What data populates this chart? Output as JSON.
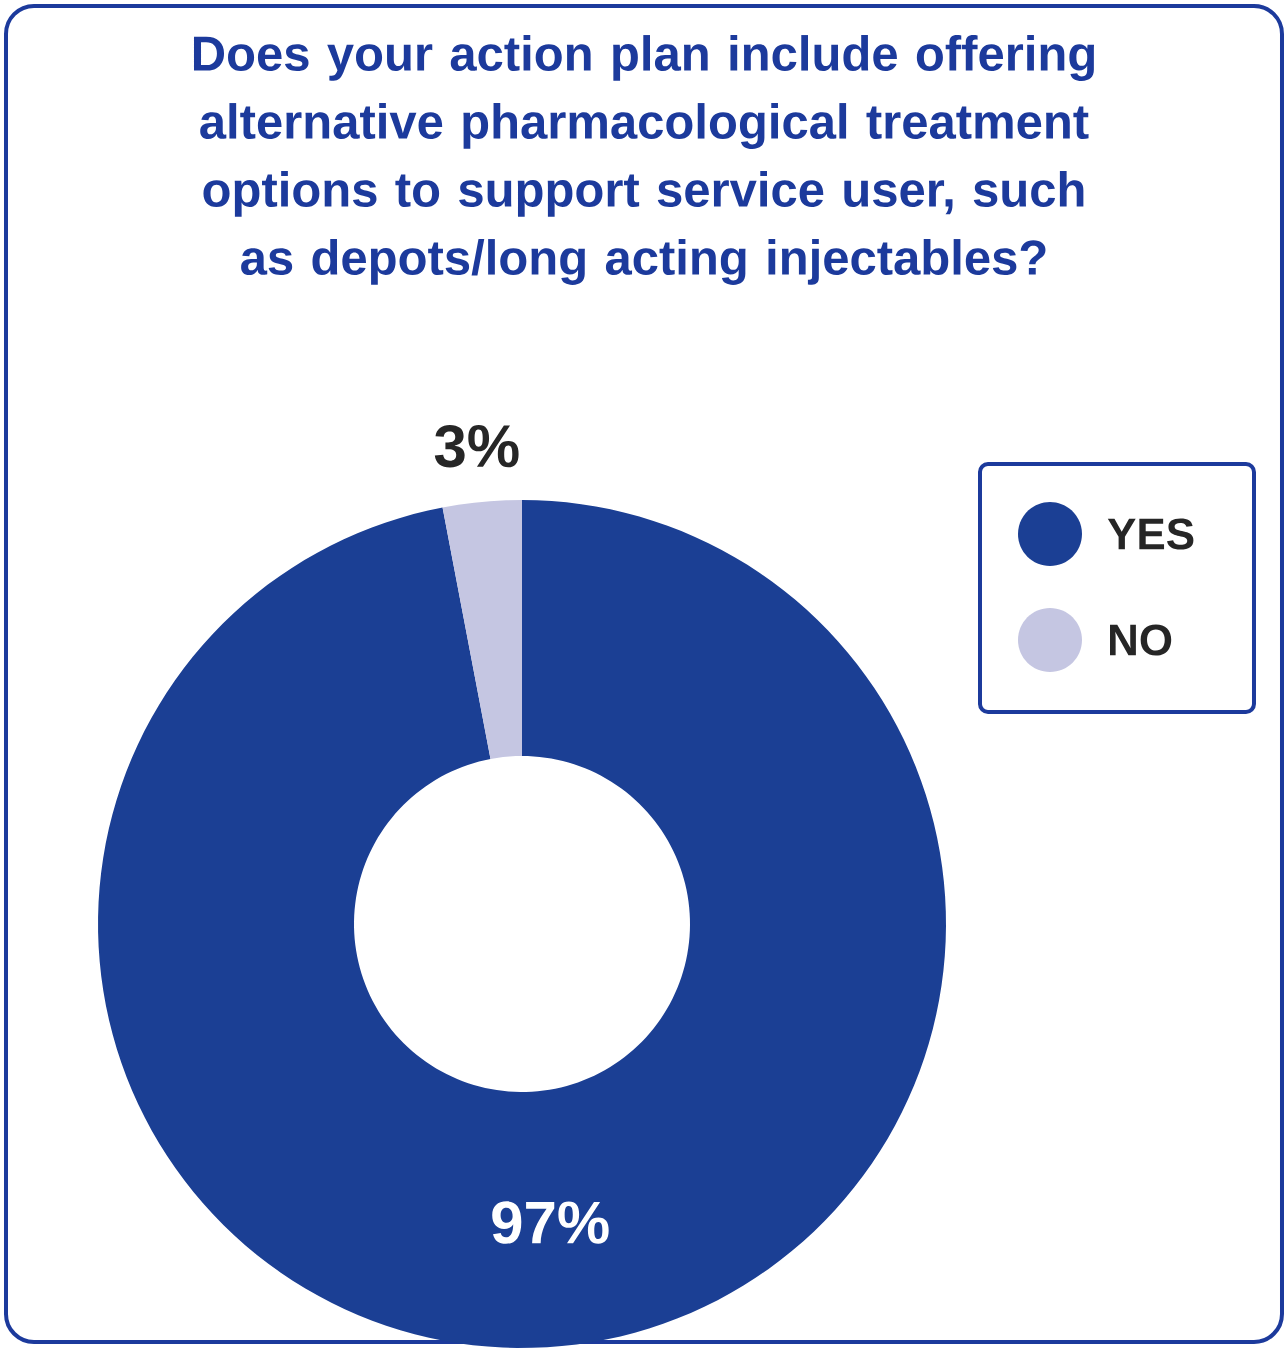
{
  "chart_data": {
    "type": "donut",
    "title": "Does your action plan include offering alternative pharmacological treatment options to support service user, such as depots/long acting injectables?",
    "categories": [
      "YES",
      "NO"
    ],
    "values": [
      97,
      3
    ],
    "value_labels": [
      "97%",
      "3%"
    ],
    "colors": [
      "#1b3f94",
      "#c5c6e2"
    ],
    "legend": "right"
  }
}
